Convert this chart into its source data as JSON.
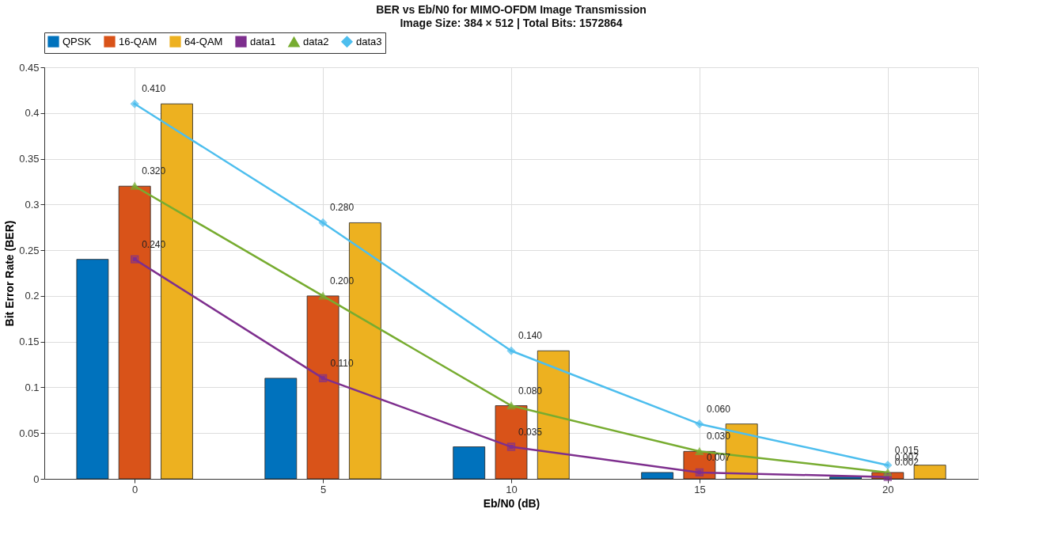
{
  "chart_data": {
    "type": "bar",
    "title": "BER vs Eb/N0 for MIMO-OFDM Image Transmission",
    "subtitle": "Image Size: 384 × 512   |   Total Bits: 1572864",
    "xlabel": "Eb/N0 (dB)",
    "ylabel": "Bit Error Rate (BER)",
    "x": [
      0,
      5,
      10,
      15,
      20
    ],
    "series": [
      {
        "name": "QPSK",
        "color": "#0072bd",
        "values": [
          0.24,
          0.11,
          0.035,
          0.007,
          0.002
        ]
      },
      {
        "name": "16-QAM",
        "color": "#d95319",
        "values": [
          0.32,
          0.2,
          0.08,
          0.03,
          0.007
        ]
      },
      {
        "name": "64-QAM",
        "color": "#edb120",
        "values": [
          0.41,
          0.28,
          0.14,
          0.06,
          0.015
        ]
      },
      {
        "name": "data1",
        "type": "line",
        "color": "#7e2f8e",
        "marker": "square",
        "values": [
          0.24,
          0.11,
          0.035,
          0.007,
          0.002
        ],
        "value_labels": [
          "0.240",
          "0.110",
          "0.035",
          "0.007",
          "0.002"
        ]
      },
      {
        "name": "data2",
        "type": "line",
        "color": "#77ac30",
        "marker": "triangle",
        "values": [
          0.32,
          0.2,
          0.08,
          0.03,
          0.007
        ],
        "value_labels": [
          "0.320",
          "0.200",
          "0.080",
          "0.030",
          "0.007"
        ]
      },
      {
        "name": "data3",
        "type": "line",
        "color": "#4dbeee",
        "marker": "diamond",
        "values": [
          0.41,
          0.28,
          0.14,
          0.06,
          0.015
        ],
        "value_labels": [
          "0.410",
          "0.280",
          "0.140",
          "0.060",
          "0.015"
        ]
      }
    ],
    "xlim": [
      -2.4,
      22.4
    ],
    "xticks": [
      0,
      5,
      10,
      15,
      20
    ],
    "ylim": [
      0,
      0.45
    ],
    "yticks": [
      0,
      0.05,
      0.1,
      0.15,
      0.2,
      0.25,
      0.3,
      0.35,
      0.4,
      0.45
    ],
    "grid": true,
    "legend": "top"
  }
}
